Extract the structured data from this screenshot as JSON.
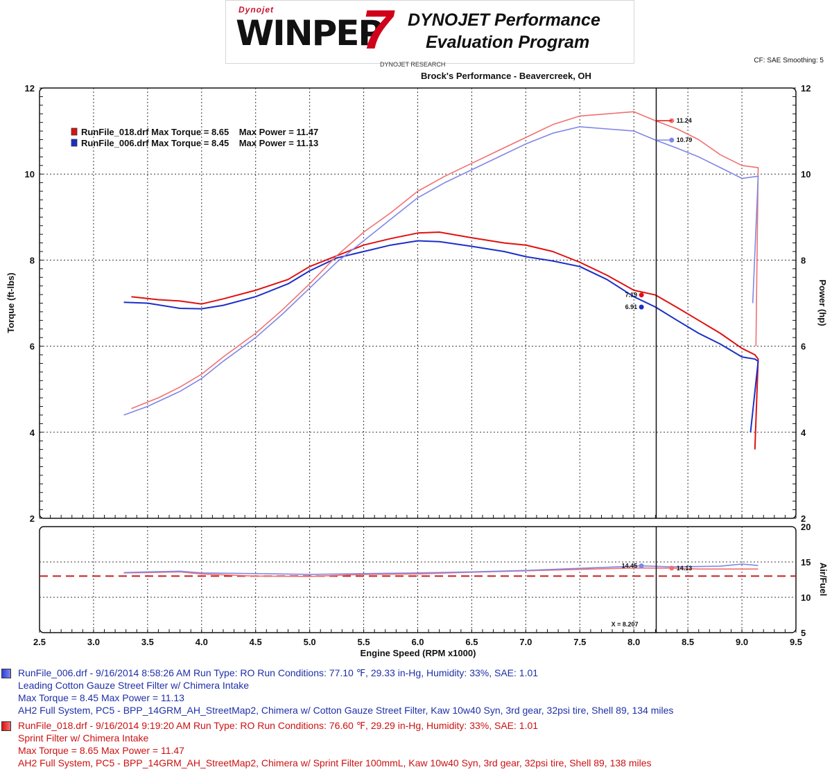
{
  "header": {
    "logo_small": "Dynojet",
    "logo_main": "WINPEP",
    "logo_number": "7",
    "logo_sub1": "DYNOJET Performance",
    "logo_sub2": "Evaluation Program",
    "research": "DYNOJET RESEARCH",
    "cf": "CF: SAE  Smoothing: 5",
    "shop": "Brock's Performance - Beavercreek, OH"
  },
  "colors": {
    "red": "#e01010",
    "red_light": "#f07070",
    "blue": "#1a2fc8",
    "blue_light": "#7f86e6",
    "dash": "#c81e1e"
  },
  "chart_data": [
    {
      "type": "line",
      "xlabel": "Engine Speed (RPM x1000)",
      "ylabel": "Torque (ft-lbs)",
      "y2label": "Power (hp)",
      "xlim": [
        2.5,
        9.5
      ],
      "ylim": [
        2,
        12
      ],
      "y2lim": [
        2,
        12
      ],
      "xticks": [
        "2.5",
        "3.0",
        "3.5",
        "4.0",
        "4.5",
        "5.0",
        "5.5",
        "6.0",
        "6.5",
        "7.0",
        "7.5",
        "8.0",
        "8.5",
        "9.0",
        "9.5"
      ],
      "yticks": [
        "2",
        "4",
        "6",
        "8",
        "10",
        "12"
      ],
      "grid": true,
      "cursor_x": 8.207,
      "legend": [
        "RunFile_018.drf Max Torque = 8.65    Max Power = 11.47",
        "RunFile_006.drf Max Torque = 8.45    Max Power = 11.13"
      ],
      "series": [
        {
          "name": "RunFile_018.drf",
          "kind": "torque",
          "points": [
            [
              3.35,
              7.15
            ],
            [
              3.6,
              7.08
            ],
            [
              3.8,
              7.05
            ],
            [
              4.0,
              6.98
            ],
            [
              4.2,
              7.1
            ],
            [
              4.5,
              7.3
            ],
            [
              4.8,
              7.55
            ],
            [
              5.0,
              7.85
            ],
            [
              5.25,
              8.1
            ],
            [
              5.5,
              8.35
            ],
            [
              5.75,
              8.5
            ],
            [
              6.0,
              8.63
            ],
            [
              6.2,
              8.65
            ],
            [
              6.5,
              8.52
            ],
            [
              6.8,
              8.4
            ],
            [
              7.0,
              8.35
            ],
            [
              7.25,
              8.2
            ],
            [
              7.5,
              7.95
            ],
            [
              7.75,
              7.65
            ],
            [
              8.0,
              7.3
            ],
            [
              8.2,
              7.19
            ],
            [
              8.4,
              6.9
            ],
            [
              8.6,
              6.6
            ],
            [
              8.8,
              6.3
            ],
            [
              9.0,
              5.95
            ],
            [
              9.12,
              5.8
            ],
            [
              9.15,
              5.7
            ],
            [
              9.12,
              3.6
            ]
          ]
        },
        {
          "name": "RunFile_006.drf",
          "kind": "torque",
          "points": [
            [
              3.28,
              7.02
            ],
            [
              3.5,
              7.0
            ],
            [
              3.8,
              6.88
            ],
            [
              4.0,
              6.87
            ],
            [
              4.2,
              6.95
            ],
            [
              4.5,
              7.15
            ],
            [
              4.8,
              7.45
            ],
            [
              5.0,
              7.75
            ],
            [
              5.25,
              8.05
            ],
            [
              5.5,
              8.2
            ],
            [
              5.75,
              8.35
            ],
            [
              6.0,
              8.45
            ],
            [
              6.2,
              8.43
            ],
            [
              6.5,
              8.32
            ],
            [
              6.8,
              8.2
            ],
            [
              7.0,
              8.08
            ],
            [
              7.25,
              7.98
            ],
            [
              7.5,
              7.85
            ],
            [
              7.75,
              7.55
            ],
            [
              8.0,
              7.15
            ],
            [
              8.2,
              6.91
            ],
            [
              8.4,
              6.6
            ],
            [
              8.6,
              6.3
            ],
            [
              8.8,
              6.05
            ],
            [
              9.0,
              5.75
            ],
            [
              9.12,
              5.7
            ],
            [
              9.15,
              5.65
            ],
            [
              9.08,
              4.0
            ]
          ]
        },
        {
          "name": "RunFile_018.drf",
          "kind": "power",
          "points": [
            [
              3.35,
              4.55
            ],
            [
              3.6,
              4.8
            ],
            [
              3.8,
              5.05
            ],
            [
              4.0,
              5.35
            ],
            [
              4.2,
              5.75
            ],
            [
              4.5,
              6.3
            ],
            [
              4.75,
              6.85
            ],
            [
              5.0,
              7.45
            ],
            [
              5.25,
              8.1
            ],
            [
              5.5,
              8.65
            ],
            [
              5.75,
              9.1
            ],
            [
              6.0,
              9.6
            ],
            [
              6.25,
              9.95
            ],
            [
              6.5,
              10.25
            ],
            [
              6.75,
              10.55
            ],
            [
              7.0,
              10.85
            ],
            [
              7.25,
              11.15
            ],
            [
              7.5,
              11.35
            ],
            [
              7.75,
              11.4
            ],
            [
              8.0,
              11.45
            ],
            [
              8.2,
              11.24
            ],
            [
              8.4,
              11.05
            ],
            [
              8.6,
              10.8
            ],
            [
              8.8,
              10.45
            ],
            [
              9.0,
              10.2
            ],
            [
              9.15,
              10.15
            ],
            [
              9.13,
              6.0
            ]
          ]
        },
        {
          "name": "RunFile_006.drf",
          "kind": "power",
          "points": [
            [
              3.28,
              4.4
            ],
            [
              3.5,
              4.6
            ],
            [
              3.8,
              4.95
            ],
            [
              4.0,
              5.25
            ],
            [
              4.2,
              5.65
            ],
            [
              4.5,
              6.2
            ],
            [
              4.75,
              6.75
            ],
            [
              5.0,
              7.35
            ],
            [
              5.25,
              7.95
            ],
            [
              5.5,
              8.45
            ],
            [
              5.75,
              8.95
            ],
            [
              6.0,
              9.45
            ],
            [
              6.25,
              9.8
            ],
            [
              6.5,
              10.1
            ],
            [
              6.75,
              10.4
            ],
            [
              7.0,
              10.7
            ],
            [
              7.25,
              10.95
            ],
            [
              7.5,
              11.1
            ],
            [
              7.75,
              11.05
            ],
            [
              8.0,
              11.0
            ],
            [
              8.2,
              10.79
            ],
            [
              8.4,
              10.6
            ],
            [
              8.6,
              10.4
            ],
            [
              8.8,
              10.15
            ],
            [
              9.0,
              9.9
            ],
            [
              9.15,
              9.95
            ],
            [
              9.1,
              7.0
            ]
          ]
        }
      ],
      "annotations": [
        {
          "text": "11.24",
          "x": 8.35,
          "y": 11.24,
          "color": "red_light"
        },
        {
          "text": "10.79",
          "x": 8.35,
          "y": 10.79,
          "color": "blue_light"
        },
        {
          "text": "7.19",
          "x": 8.07,
          "y": 7.19,
          "color": "red"
        },
        {
          "text": "6.91",
          "x": 8.07,
          "y": 6.91,
          "color": "blue"
        }
      ]
    },
    {
      "type": "line",
      "ylabel": "Air/Fuel",
      "xlim": [
        2.5,
        9.5
      ],
      "ylim": [
        5,
        20
      ],
      "yticks": [
        "5",
        "10",
        "15",
        "20"
      ],
      "grid": true,
      "reference_line": 13.0,
      "cursor_label": "X = 8.207",
      "series": [
        {
          "name": "RunFile_018.drf",
          "points": [
            [
              3.28,
              13.45
            ],
            [
              3.5,
              13.5
            ],
            [
              3.8,
              13.6
            ],
            [
              4.0,
              13.3
            ],
            [
              4.5,
              13.0
            ],
            [
              5.0,
              12.95
            ],
            [
              5.5,
              13.25
            ],
            [
              6.0,
              13.3
            ],
            [
              6.5,
              13.55
            ],
            [
              7.0,
              13.75
            ],
            [
              7.5,
              13.95
            ],
            [
              8.0,
              14.15
            ],
            [
              8.35,
              14.13
            ],
            [
              8.6,
              14.0
            ],
            [
              9.0,
              14.0
            ],
            [
              9.15,
              14.0
            ]
          ]
        },
        {
          "name": "RunFile_006.drf",
          "points": [
            [
              3.28,
              13.5
            ],
            [
              3.5,
              13.6
            ],
            [
              3.8,
              13.7
            ],
            [
              4.0,
              13.45
            ],
            [
              4.5,
              13.35
            ],
            [
              5.0,
              13.25
            ],
            [
              5.5,
              13.35
            ],
            [
              6.0,
              13.45
            ],
            [
              6.5,
              13.6
            ],
            [
              7.0,
              13.8
            ],
            [
              7.5,
              14.1
            ],
            [
              8.07,
              14.45
            ],
            [
              8.35,
              14.3
            ],
            [
              8.8,
              14.4
            ],
            [
              9.0,
              14.7
            ],
            [
              9.15,
              14.5
            ]
          ]
        }
      ],
      "annotations": [
        {
          "text": "14.45",
          "x": 8.07,
          "y": 14.45,
          "color": "blue_light"
        },
        {
          "text": "14.13",
          "x": 8.35,
          "y": 14.13,
          "color": "red_light"
        }
      ]
    }
  ],
  "runs": [
    {
      "color": "blue",
      "line1": "RunFile_006.drf - 9/16/2014 8:58:26 AM  Run Type: RO  Run Conditions: 77.10 ℉, 29.33 in-Hg,  Humidity:  33%, SAE: 1.01",
      "line2": "Leading Cotton Gauze Street Filter w/ Chimera Intake",
      "line3": "Max Torque = 8.45  Max Power = 11.13",
      "line4": "AH2 Full System, PC5 - BPP_14GRM_AH_StreetMap2, Chimera w/ Cotton Gauze Street Filter, Kaw 10w40 Syn, 3rd gear, 32psi tire, Shell 89, 134 miles"
    },
    {
      "color": "red",
      "line1": "RunFile_018.drf - 9/16/2014 9:19:20 AM  Run Type: RO  Run Conditions: 76.60 ℉, 29.29 in-Hg,  Humidity:  33%, SAE: 1.01",
      "line2": "Sprint Filter w/ Chimera Intake",
      "line3": "Max Torque = 8.65  Max Power = 11.47",
      "line4": "AH2 Full System, PC5 - BPP_14GRM_AH_StreetMap2, Chimera w/ Sprint Filter 100mmL, Kaw 10w40 Syn, 3rd gear, 32psi tire, Shell 89, 138 miles"
    }
  ]
}
